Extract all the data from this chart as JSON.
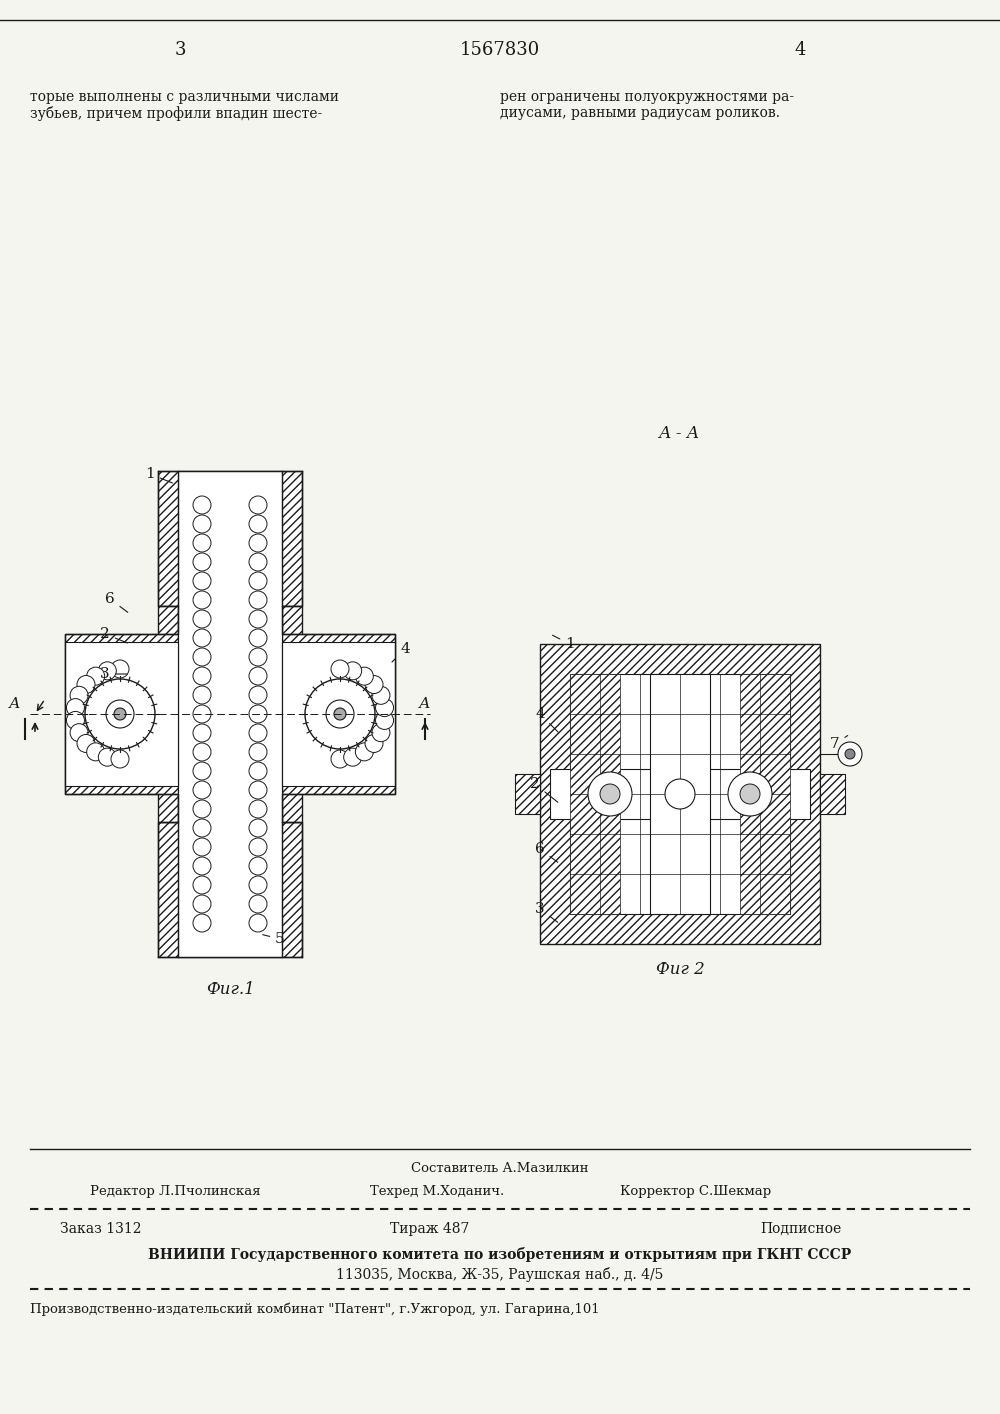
{
  "page_number_left": "3",
  "page_number_center": "1567830",
  "page_number_right": "4",
  "text_left": "торые выполнены с различными числами\nзубьев, причем профили впадин шесте-",
  "text_right": "рен ограничены полуокружностями ра-\nдиусами, равными радиусам роликов.",
  "fig1_label": "Фиг.1",
  "fig2_label": "Фиг 2",
  "fig2_section_label": "А - А",
  "footer_sestavitel": "Составитель А.Мазилкин",
  "footer_redaktor": "Редактор Л.Пчолинская",
  "footer_tehred": "Техред М.Ходанич.",
  "footer_korrektor": "Корректор С.Шекмар",
  "footer_zakaz": "Заказ 1312",
  "footer_tirazh": "Тираж 487",
  "footer_podpisnoe": "Подписное",
  "footer_vniиpi": "ВНИИПИ Государственного комитета по изобретениям и открытиям при ГКНТ СССР",
  "footer_address": "113035, Москва, Ж-35, Раушская наб., д. 4/5",
  "footer_kombinat": "Производственно-издательский комбинат \"Патент\", г.Ужгород, ул. Гагарина,101",
  "bg_color": "#f5f5f0",
  "line_color": "#1a1a1a",
  "hatch_color": "#1a1a1a",
  "text_color": "#1a1a1a"
}
